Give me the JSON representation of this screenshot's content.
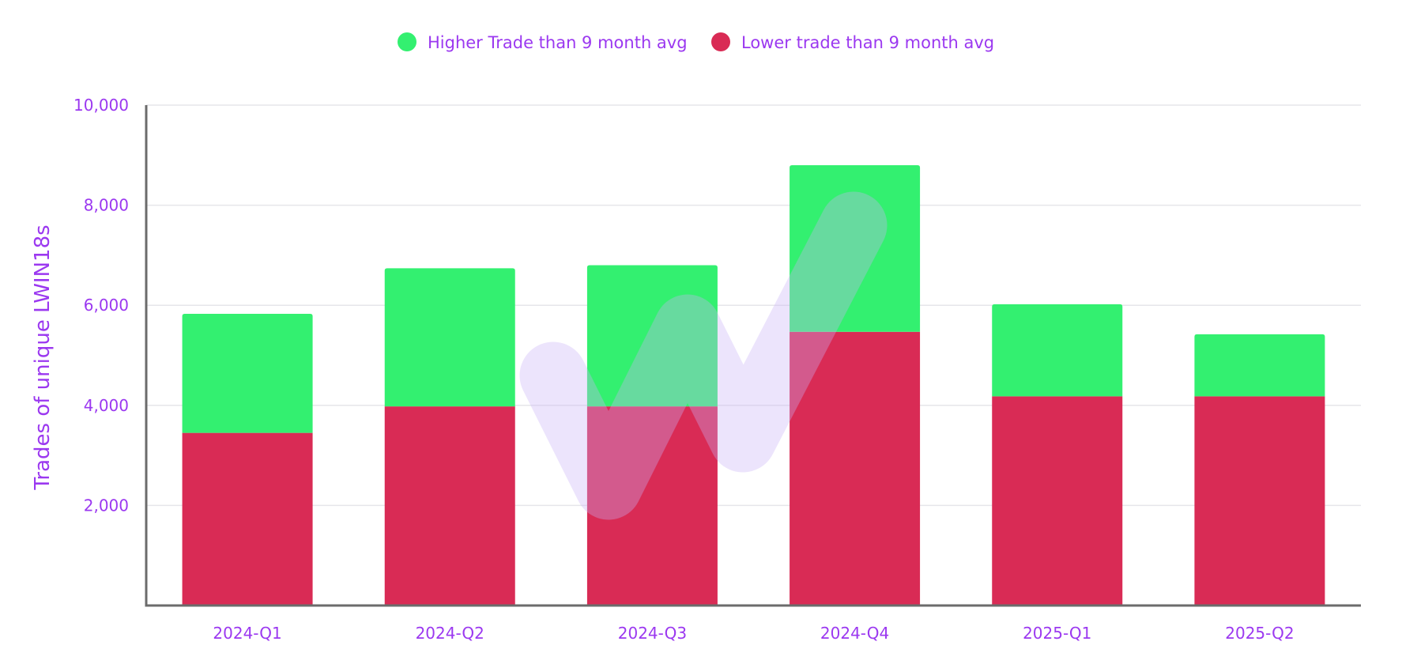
{
  "chart_data": {
    "type": "bar",
    "stacked": true,
    "title": "",
    "xlabel": "",
    "ylabel": "Trades of unique LWIN18s",
    "categories": [
      "2024-Q1",
      "2024-Q2",
      "2024-Q3",
      "2024-Q4",
      "2025-Q1",
      "2025-Q2"
    ],
    "series": [
      {
        "name": "Lower trade than 9 month avg",
        "color": "#d92b55",
        "values": [
          3450,
          3980,
          3980,
          5470,
          4180,
          4180
        ]
      },
      {
        "name": "Higher Trade than 9 month avg",
        "color": "#33f070",
        "values": [
          2380,
          2760,
          2820,
          3330,
          1840,
          1240
        ]
      }
    ],
    "ylim": [
      0,
      10000
    ],
    "yticks": [
      2000,
      4000,
      6000,
      8000,
      10000
    ],
    "ytick_labels": [
      "2,000",
      "4,000",
      "6,000",
      "8,000",
      "10,000"
    ],
    "grid": true,
    "legend_position": "top-center",
    "legend": [
      {
        "label": "Higher Trade than 9 month avg",
        "color": "#33f070"
      },
      {
        "label": "Lower trade than 9 month avg",
        "color": "#d92b55"
      }
    ],
    "text_color": "#9b38f0",
    "axis_color": "#6b6b6b",
    "grid_color": "#e6e6ea"
  }
}
